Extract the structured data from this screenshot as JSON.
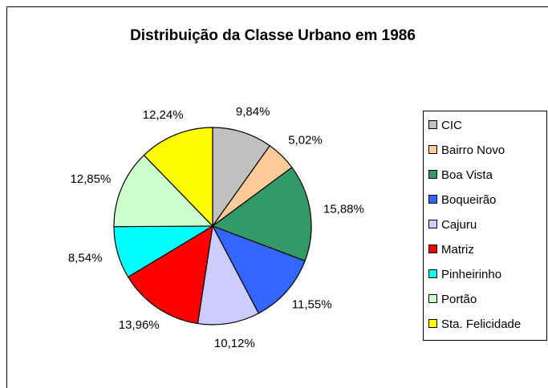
{
  "chart_data": {
    "type": "pie",
    "title": "Distribuição da Classe Urbano em 1986",
    "categories": [
      "CIC",
      "Bairro Novo",
      "Boa Vista",
      "Boqueirão",
      "Cajuru",
      "Matriz",
      "Pinheirinho",
      "Portão",
      "Sta. Felicidade"
    ],
    "values": [
      9.84,
      5.02,
      15.88,
      11.55,
      10.12,
      13.96,
      8.54,
      12.85,
      12.24
    ],
    "value_labels": [
      "9,84%",
      "5,02%",
      "15,88%",
      "11,55%",
      "10,12%",
      "13,96%",
      "8,54%",
      "12,85%",
      "12,24%"
    ],
    "colors": [
      "#c0c0c0",
      "#ffcc99",
      "#339966",
      "#3366ff",
      "#ccccff",
      "#ff0000",
      "#00ffff",
      "#ccffcc",
      "#ffff00"
    ],
    "legend": "right"
  }
}
